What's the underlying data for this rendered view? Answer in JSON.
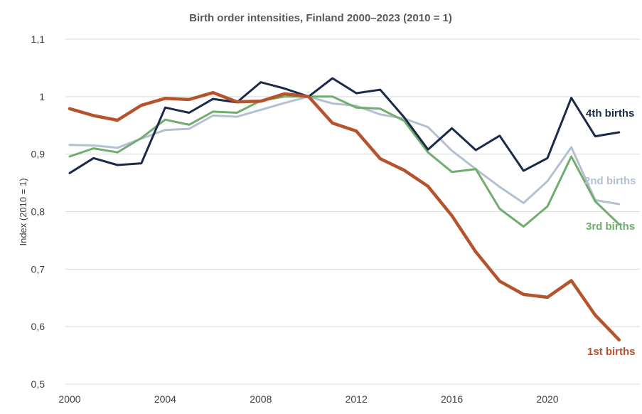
{
  "chart_data": {
    "type": "line",
    "title": "Birth order intensities, Finland 2000–2023 (2010 = 1)",
    "xlabel": "",
    "ylabel": "Index (2010 = 1)",
    "x": [
      2000,
      2001,
      2002,
      2003,
      2004,
      2005,
      2006,
      2007,
      2008,
      2009,
      2010,
      2011,
      2012,
      2013,
      2014,
      2015,
      2016,
      2017,
      2018,
      2019,
      2020,
      2021,
      2022,
      2023
    ],
    "xlim": [
      2000,
      2023
    ],
    "x_ticks": [
      2000,
      2004,
      2008,
      2012,
      2016,
      2020
    ],
    "x_tick_labels": [
      "2000",
      "2004",
      "2008",
      "2012",
      "2016",
      "2020"
    ],
    "ylim": [
      0.5,
      1.1
    ],
    "y_ticks": [
      0.5,
      0.6,
      0.7,
      0.8,
      0.9,
      1.0,
      1.1
    ],
    "y_tick_labels": [
      "0,5",
      "0,6",
      "0,7",
      "0,8",
      "0,9",
      "1",
      "1,1"
    ],
    "grid": "horizontal",
    "legend": "direct-labels",
    "series": [
      {
        "name": "2nd births",
        "color": "#b4bfd3",
        "width": 3,
        "values": [
          0.916,
          0.915,
          0.911,
          0.927,
          0.942,
          0.944,
          0.967,
          0.965,
          0.977,
          0.989,
          1.0,
          0.988,
          0.984,
          0.969,
          0.962,
          0.947,
          0.906,
          0.874,
          0.843,
          0.815,
          0.853,
          0.912,
          0.82,
          0.813
        ]
      },
      {
        "name": "3rd births",
        "color": "#70ad6e",
        "width": 3,
        "values": [
          0.896,
          0.91,
          0.903,
          0.928,
          0.96,
          0.951,
          0.974,
          0.972,
          0.993,
          1.0,
          1.0,
          1.0,
          0.981,
          0.979,
          0.958,
          0.903,
          0.869,
          0.874,
          0.805,
          0.774,
          0.809,
          0.896,
          0.818,
          0.778
        ]
      },
      {
        "name": "4th births",
        "color": "#1c2a4a",
        "width": 3,
        "values": [
          0.867,
          0.893,
          0.881,
          0.884,
          0.981,
          0.972,
          0.996,
          0.99,
          1.025,
          1.014,
          1.0,
          1.032,
          1.006,
          1.012,
          0.964,
          0.908,
          0.945,
          0.907,
          0.932,
          0.871,
          0.893,
          0.998,
          0.931,
          0.938
        ]
      },
      {
        "name": "1st births",
        "color": "#b5532d",
        "width": 4.5,
        "values": [
          0.979,
          0.967,
          0.959,
          0.985,
          0.997,
          0.995,
          1.007,
          0.991,
          0.992,
          1.005,
          1.0,
          0.954,
          0.94,
          0.892,
          0.872,
          0.844,
          0.793,
          0.73,
          0.679,
          0.656,
          0.651,
          0.68,
          0.62,
          0.577
        ]
      }
    ]
  }
}
